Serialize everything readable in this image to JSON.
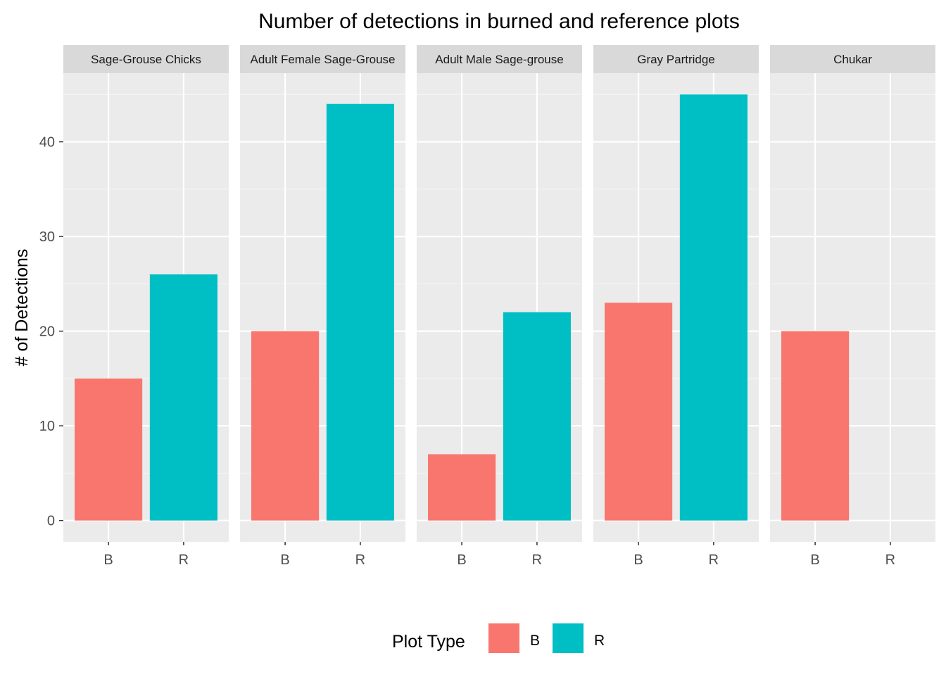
{
  "chart_data": {
    "type": "bar",
    "title": "Number of detections in burned and reference plots",
    "xlabel": "",
    "ylabel": "# of Detections",
    "ylim": [
      -2.25,
      47.25
    ],
    "yticks": [
      0,
      10,
      20,
      30,
      40
    ],
    "categories": [
      "B",
      "R"
    ],
    "panels": [
      {
        "name": "Sage-Grouse Chicks",
        "values": {
          "B": 15,
          "R": 26
        }
      },
      {
        "name": "Adult Female Sage-Grouse",
        "values": {
          "B": 20,
          "R": 44
        }
      },
      {
        "name": "Adult Male Sage-grouse",
        "values": {
          "B": 7,
          "R": 22
        }
      },
      {
        "name": "Gray Partridge",
        "values": {
          "B": 23,
          "R": 45
        }
      },
      {
        "name": "Chukar",
        "values": {
          "B": 20,
          "R": null
        }
      }
    ],
    "legend": {
      "title": "Plot Type",
      "position": "bottom",
      "items": [
        {
          "label": "B",
          "color": "#F8766D"
        },
        {
          "label": "R",
          "color": "#00BFC4"
        }
      ]
    },
    "grid": true,
    "colors": {
      "panel_bg": "#EBEBEB",
      "strip_bg": "#D9D9D9",
      "grid_major": "#FFFFFF",
      "grid_minor": "#F5F5F5"
    }
  }
}
